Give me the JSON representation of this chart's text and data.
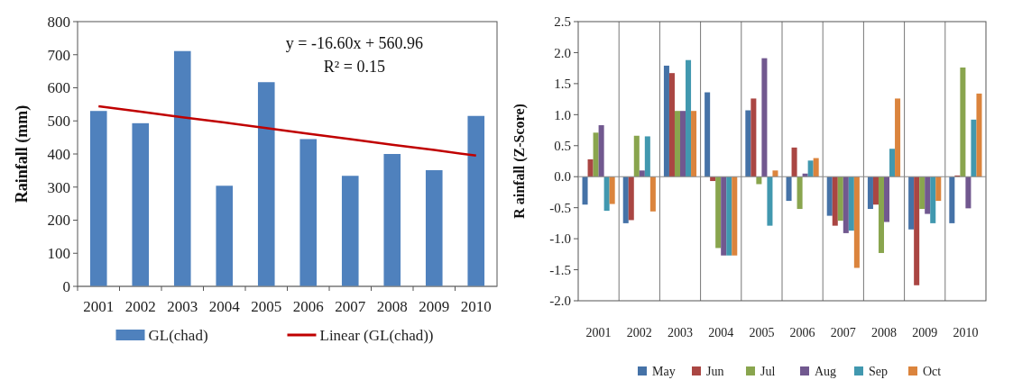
{
  "chart_data": [
    {
      "type": "bar",
      "ylabel": "Rainfall (mm)",
      "categories": [
        "2001",
        "2002",
        "2003",
        "2004",
        "2005",
        "2006",
        "2007",
        "2008",
        "2009",
        "2010"
      ],
      "ylim": [
        0,
        800
      ],
      "yticks": [
        0,
        100,
        200,
        300,
        400,
        500,
        600,
        700,
        800
      ],
      "legend": "bottom",
      "grid": false,
      "annotations": [
        "y = -16.60x + 560.96",
        "R² = 0.15"
      ],
      "series": [
        {
          "name": "GL(chad)",
          "color": "#4f81bd",
          "values": [
            530,
            493,
            711,
            304,
            617,
            445,
            334,
            400,
            351,
            515
          ]
        },
        {
          "name": "Linear (GL(chad))",
          "type": "line",
          "color": "#c00000",
          "values": [
            544,
            528,
            511,
            495,
            478,
            461,
            445,
            428,
            412,
            395
          ]
        }
      ]
    },
    {
      "type": "bar",
      "ylabel": "R ainfall (Z-Score)",
      "categories": [
        "2001",
        "2002",
        "2003",
        "2004",
        "2005",
        "2006",
        "2007",
        "2008",
        "2009",
        "2010"
      ],
      "ylim": [
        -2.0,
        2.5
      ],
      "yticks": [
        {
          "value": -2,
          "label": "-2.0"
        },
        {
          "value": -1.5,
          "label": "-1.5"
        },
        {
          "value": -1,
          "label": "-1.0"
        },
        {
          "value": -0.5,
          "label": "-0.5"
        },
        {
          "value": 0,
          "label": "0.0"
        },
        {
          "value": 0.5,
          "label": "0.5"
        },
        {
          "value": 1,
          "label": "1.0"
        },
        {
          "value": 1.5,
          "label": "1.5"
        },
        {
          "value": 2,
          "label": "2.0"
        },
        {
          "value": 2.5,
          "label": "2.5"
        }
      ],
      "legend": "bottom",
      "grid": "x",
      "series": [
        {
          "name": "May",
          "color": "#4572a7",
          "values": [
            -0.45,
            -0.75,
            1.79,
            1.36,
            1.07,
            -0.39,
            -0.63,
            -0.52,
            -0.85,
            -0.75
          ]
        },
        {
          "name": "Jun",
          "color": "#aa4643",
          "values": [
            0.28,
            -0.7,
            1.67,
            -0.07,
            1.26,
            0.47,
            -0.79,
            -0.45,
            -1.75,
            0.02
          ]
        },
        {
          "name": "Jul",
          "color": "#89a54e",
          "values": [
            0.71,
            0.66,
            1.06,
            -1.15,
            -0.12,
            -0.52,
            -0.71,
            -1.23,
            -0.52,
            1.76
          ]
        },
        {
          "name": "Aug",
          "color": "#71588f",
          "values": [
            0.83,
            0.1,
            1.06,
            -1.27,
            1.91,
            0.05,
            -0.91,
            -0.73,
            -0.6,
            -0.51
          ]
        },
        {
          "name": "Sep",
          "color": "#4198af",
          "values": [
            -0.55,
            0.65,
            1.88,
            -1.27,
            -0.79,
            0.26,
            -0.87,
            0.45,
            -0.75,
            0.92
          ]
        },
        {
          "name": "Oct",
          "color": "#db843d",
          "values": [
            -0.44,
            -0.56,
            1.06,
            -1.27,
            0.1,
            0.3,
            -1.47,
            1.26,
            -0.39,
            1.34
          ]
        }
      ]
    }
  ]
}
